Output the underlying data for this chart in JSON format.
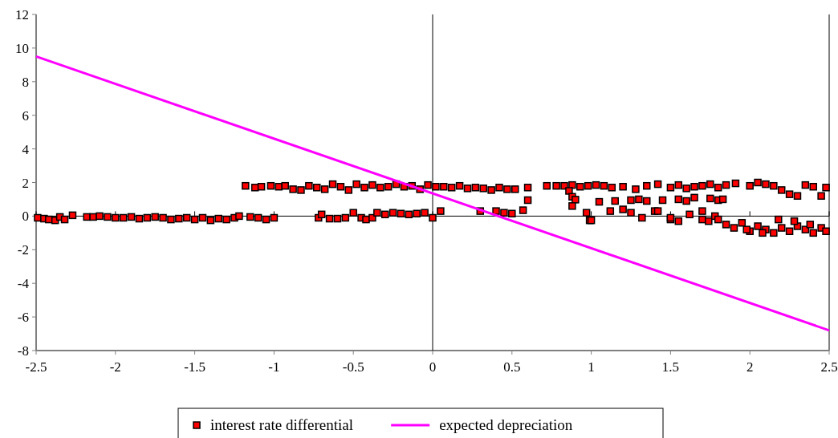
{
  "chart_data": {
    "type": "scatter",
    "xlim": [
      -2.5,
      2.5
    ],
    "ylim": [
      -8,
      12
    ],
    "xticks": [
      -2.5,
      -2,
      -1.5,
      -1,
      -0.5,
      0,
      0.5,
      1,
      1.5,
      2,
      2.5
    ],
    "yticks": [
      -8,
      -6,
      -4,
      -2,
      0,
      2,
      4,
      6,
      8,
      10,
      12
    ],
    "legend": "bottom",
    "series": [
      {
        "name": "interest rate differential",
        "marker": "square",
        "color": "#ff0000",
        "x": [
          -2.49,
          -2.45,
          -2.42,
          -2.38,
          -2.35,
          -2.32,
          -2.27,
          -2.18,
          -2.14,
          -2.1,
          -2.05,
          -2,
          -1.95,
          -1.9,
          -1.85,
          -1.8,
          -1.75,
          -1.7,
          -1.65,
          -1.6,
          -1.55,
          -1.5,
          -1.45,
          -1.4,
          -1.35,
          -1.3,
          -1.25,
          -1.22,
          -1.15,
          -1.1,
          -1.05,
          -1,
          -0.72,
          -0.7,
          -0.65,
          -0.6,
          -0.55,
          -0.5,
          -0.45,
          -0.42,
          -0.38,
          -0.35,
          -0.3,
          -0.25,
          -0.2,
          -0.15,
          -0.1,
          -0.05,
          0,
          0.05,
          0.3,
          0.4,
          0.45,
          0.5,
          0.57,
          0.6,
          -1.18,
          -1.12,
          -1.08,
          -1.02,
          -0.97,
          -0.93,
          -0.88,
          -0.83,
          -0.78,
          -0.73,
          -0.68,
          -0.63,
          -0.58,
          -0.53,
          -0.48,
          -0.43,
          -0.38,
          -0.33,
          -0.28,
          -0.23,
          -0.18,
          -0.13,
          -0.08,
          -0.03,
          0.02,
          0.07,
          0.12,
          0.17,
          0.22,
          0.27,
          0.32,
          0.37,
          0.42,
          0.47,
          0.52,
          0.6,
          0.72,
          0.78,
          0.83,
          0.88,
          0.93,
          0.98,
          1.03,
          1.08,
          1.13,
          1.2,
          1.28,
          1.35,
          1.42,
          1.5,
          1.55,
          1.6,
          1.65,
          1.7,
          1.75,
          1.8,
          1.85,
          1.91,
          2.0,
          2.05,
          2.1,
          2.15,
          2.2,
          2.25,
          2.3,
          2.35,
          2.4,
          2.45,
          2.48,
          0.86,
          0.88,
          0.9,
          0.88,
          0.97,
          0.99,
          1.0,
          1.05,
          1.12,
          1.2,
          1.25,
          1.3,
          1.35,
          1.4,
          1.45,
          1.5,
          1.55,
          1.6,
          1.65,
          1.7,
          1.75,
          1.8,
          1.83,
          1.15,
          1.25,
          1.32,
          1.42,
          1.5,
          1.55,
          1.62,
          1.7,
          1.74,
          1.78,
          1.8,
          1.85,
          1.9,
          1.95,
          2.0,
          2.05,
          2.1,
          2.15,
          2.2,
          2.25,
          2.3,
          2.35,
          2.4,
          2.45,
          2.48,
          1.98,
          2.08,
          2.18,
          2.28,
          2.38
        ],
        "values": [
          -0.1,
          -0.15,
          -0.2,
          -0.25,
          -0.05,
          -0.2,
          0.05,
          -0.05,
          -0.05,
          0,
          -0.05,
          -0.1,
          -0.1,
          -0.05,
          -0.15,
          -0.1,
          -0.05,
          -0.1,
          -0.2,
          -0.15,
          -0.1,
          -0.2,
          -0.1,
          -0.25,
          -0.15,
          -0.2,
          -0.1,
          0,
          -0.05,
          -0.1,
          -0.2,
          -0.1,
          -0.1,
          0.1,
          -0.15,
          -0.15,
          -0.1,
          0.2,
          -0.1,
          -0.2,
          -0.1,
          0.2,
          0.1,
          0.2,
          0.15,
          0.1,
          0.15,
          0.2,
          -0.1,
          0.3,
          0.3,
          0.3,
          0.2,
          0.15,
          0.35,
          0.95,
          1.8,
          1.7,
          1.75,
          1.8,
          1.75,
          1.8,
          1.6,
          1.55,
          1.8,
          1.7,
          1.6,
          1.9,
          1.75,
          1.55,
          1.9,
          1.7,
          1.85,
          1.7,
          1.75,
          1.9,
          1.75,
          1.8,
          1.6,
          1.85,
          1.75,
          1.75,
          1.7,
          1.8,
          1.65,
          1.7,
          1.65,
          1.55,
          1.7,
          1.6,
          1.6,
          1.7,
          1.8,
          1.8,
          1.8,
          1.85,
          1.75,
          1.8,
          1.85,
          1.8,
          1.7,
          1.75,
          1.6,
          1.8,
          1.9,
          1.7,
          1.85,
          1.65,
          1.75,
          1.8,
          1.9,
          1.7,
          1.85,
          1.95,
          1.8,
          2.0,
          1.9,
          1.8,
          1.55,
          1.3,
          1.2,
          1.85,
          1.75,
          1.2,
          1.7,
          1.5,
          1.15,
          0.98,
          0.6,
          0.2,
          -0.25,
          -0.25,
          0.85,
          0.3,
          0.4,
          0.2,
          1.0,
          0.9,
          0.3,
          0.95,
          -0.2,
          1.0,
          0.9,
          1.1,
          0.3,
          1.05,
          0.95,
          1.0,
          0.9,
          0.95,
          -0.1,
          0.3,
          -0.1,
          -0.3,
          0.1,
          -0.2,
          -0.3,
          0.0,
          -0.2,
          -0.5,
          -0.7,
          -0.4,
          -0.9,
          -0.6,
          -0.8,
          -1.0,
          -0.7,
          -0.9,
          -0.6,
          -0.8,
          -1.0,
          -0.7,
          -0.9,
          -0.8,
          -1.0,
          -0.2,
          -0.3,
          -0.5
        ]
      },
      {
        "name": "expected depreciation",
        "type": "line",
        "color": "#ff00ff",
        "x": [
          -2.5,
          2.5
        ],
        "values": [
          9.5,
          -6.8
        ]
      }
    ]
  }
}
